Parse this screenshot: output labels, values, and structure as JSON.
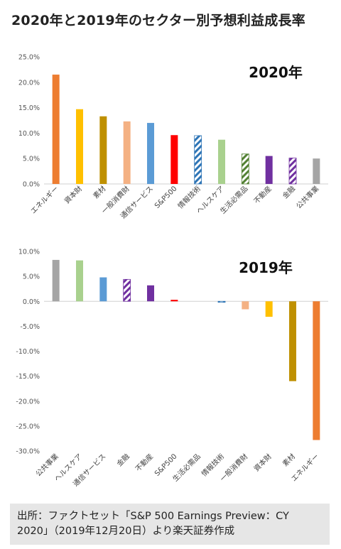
{
  "title": "2020年と2019年のセクター別予想利益成長率",
  "source": "出所：ファクトセット「S&P 500 Earnings Preview：CY 2020」（2019年12月20日）より楽天証券作成",
  "colors": {
    "orange": "#ED7D31",
    "yellow": "#FFC000",
    "gold": "#BF9000",
    "salmon": "#F4B183",
    "blue": "#5B9BD5",
    "red": "#FF0000",
    "blue_hatch": "#2E75B6",
    "lightgreen": "#A9D18E",
    "green_hatch": "#548235",
    "purple": "#7030A0",
    "purple_hatch": "#7030A0",
    "gray": "#A5A5A5"
  },
  "chart_data": [
    {
      "type": "bar",
      "title": "2020年",
      "ylim": [
        0,
        25
      ],
      "yticks": [
        0,
        5,
        10,
        15,
        20,
        25
      ],
      "ytick_labels": [
        "0.0%",
        "5.0%",
        "10.0%",
        "15.0%",
        "20.0%",
        "25.0%"
      ],
      "grid": false,
      "categories": [
        "エネルギー",
        "資本財",
        "素材",
        "一般消費財",
        "通信サービス",
        "S&P500",
        "情報技術",
        "ヘルスケア",
        "生活必需品",
        "不動産",
        "金融",
        "公共事業"
      ],
      "values": [
        21.5,
        14.7,
        13.3,
        12.3,
        12.0,
        9.6,
        9.5,
        8.7,
        5.9,
        5.5,
        5.1,
        5.0
      ],
      "bar_colors": [
        "orange",
        "yellow",
        "gold",
        "salmon",
        "blue",
        "red",
        "blue_hatch",
        "lightgreen",
        "green_hatch",
        "purple",
        "purple_hatch",
        "gray"
      ],
      "hatched": [
        false,
        false,
        false,
        false,
        false,
        false,
        true,
        false,
        true,
        false,
        true,
        false
      ]
    },
    {
      "type": "bar",
      "title": "2019年",
      "ylim": [
        -30,
        10
      ],
      "yticks": [
        10,
        5,
        0,
        -5,
        -10,
        -15,
        -20,
        -25,
        -30
      ],
      "ytick_labels": [
        "10.0%",
        "5.0%",
        "0.0%",
        "-5.0%",
        "-10.0%",
        "-15.0%",
        "-20.0%",
        "-25.0%",
        "-30.0%"
      ],
      "grid": false,
      "categories": [
        "公共事業",
        "ヘルスケア",
        "通信サービス",
        "金融",
        "不動産",
        "S&P500",
        "生活必需品",
        "情報技術",
        "一般消費財",
        "資本財",
        "素材",
        "エネルギー"
      ],
      "values": [
        8.3,
        8.2,
        4.8,
        4.4,
        3.2,
        0.3,
        0.0,
        -0.2,
        -1.6,
        -3.1,
        -16.0,
        -27.8
      ],
      "bar_colors": [
        "gray",
        "lightgreen",
        "blue",
        "purple_hatch",
        "purple",
        "red",
        "green_hatch",
        "blue_hatch",
        "salmon",
        "yellow",
        "gold",
        "orange"
      ],
      "hatched": [
        false,
        false,
        false,
        true,
        false,
        false,
        true,
        true,
        false,
        false,
        false,
        false
      ]
    }
  ]
}
